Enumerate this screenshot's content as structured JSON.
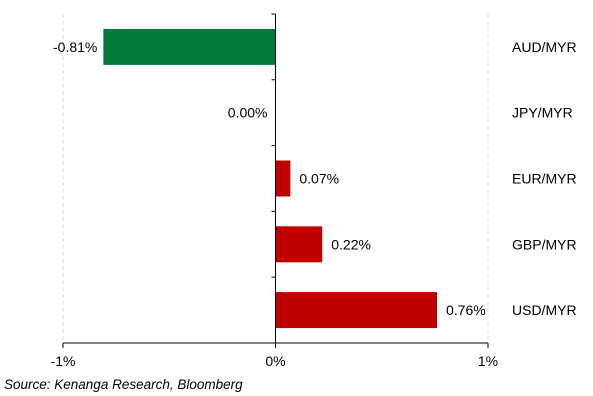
{
  "chart_data": {
    "type": "bar",
    "orientation": "horizontal",
    "categories": [
      "AUD/MYR",
      "JPY/MYR",
      "EUR/MYR",
      "GBP/MYR",
      "USD/MYR"
    ],
    "values": [
      -0.81,
      0.0,
      0.07,
      0.22,
      0.76
    ],
    "value_labels": [
      "-0.81%",
      "0.00%",
      "0.07%",
      "0.22%",
      "0.76%"
    ],
    "xlim": [
      -1,
      1
    ],
    "x_ticks": [
      -1,
      0,
      1
    ],
    "x_tick_labels": [
      "-1%",
      "0%",
      "1%"
    ],
    "grid": true,
    "colors": {
      "negative": "#007a3d",
      "positive": "#c00000"
    }
  },
  "source": "Source: Kenanga Research, Bloomberg"
}
